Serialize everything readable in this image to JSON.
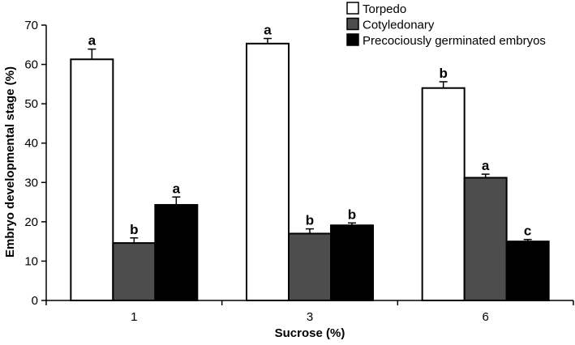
{
  "chart_data": {
    "type": "bar",
    "title": "",
    "xlabel": "Sucrose (%)",
    "ylabel": "Embryo developmental stage (%)",
    "ylim": [
      0,
      70
    ],
    "yticks": [
      0,
      10,
      20,
      30,
      40,
      50,
      60,
      70
    ],
    "categories": [
      "1",
      "3",
      "6"
    ],
    "legend_position": "top-right",
    "series": [
      {
        "name": "Torpedo",
        "color": "#ffffff",
        "values": [
          61.3,
          65.3,
          54.0
        ],
        "errors": [
          2.6,
          1.3,
          1.6
        ],
        "letters": [
          "a",
          "a",
          "b"
        ]
      },
      {
        "name": "Cotyledonary",
        "color": "#4d4d4d",
        "values": [
          14.6,
          17.0,
          31.2
        ],
        "errors": [
          1.3,
          1.2,
          0.9
        ],
        "letters": [
          "b",
          "b",
          "a"
        ]
      },
      {
        "name": "Precociously germinated embryos",
        "color": "#000000",
        "values": [
          24.3,
          19.1,
          15.0
        ],
        "errors": [
          2.0,
          0.6,
          0.5
        ],
        "letters": [
          "a",
          "b",
          "c"
        ]
      }
    ]
  }
}
